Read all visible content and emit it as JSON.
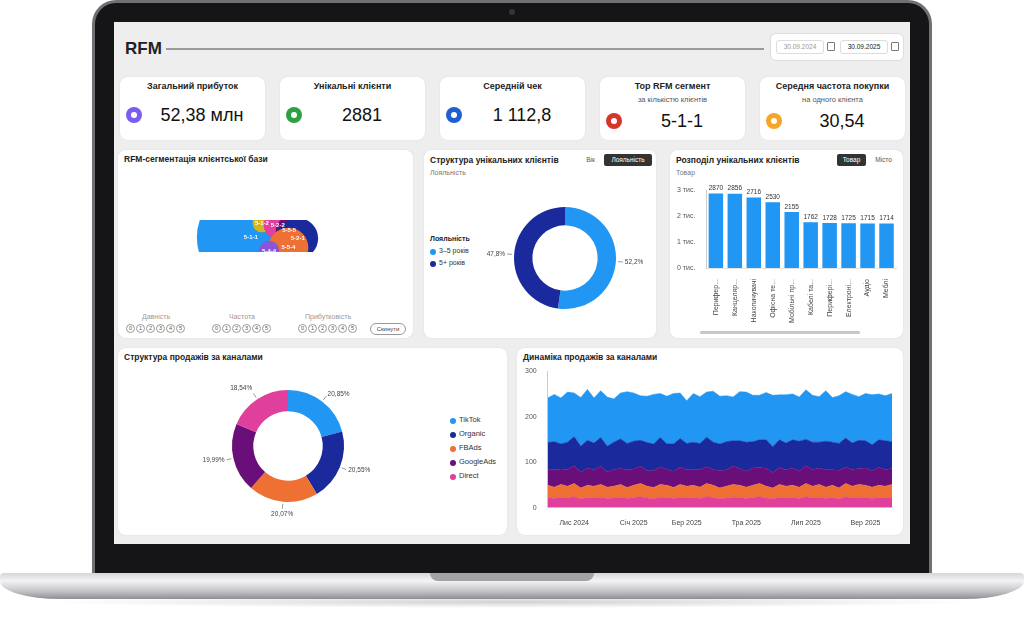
{
  "header": {
    "title": "RFM",
    "date_from": "30.09.2024",
    "date_to": "30.09.2025"
  },
  "kpis": [
    {
      "title": "Загальний прибуток",
      "value": "52,38 млн"
    },
    {
      "title": "Унікальні клієнти",
      "value": "2881"
    },
    {
      "title": "Середній чек",
      "value": "1 112,8"
    },
    {
      "title": "Top RFM сегмент",
      "subtitle": "за кількістю клієнтів",
      "value": "5-1-1"
    },
    {
      "title": "Середня частота покупки",
      "subtitle": "на одного клієнта",
      "value": "30,54"
    }
  ],
  "chart_data": [
    {
      "type": "bubble",
      "title": "RFM-сегментація клієнтської бази",
      "categories": [
        "5-1-1",
        "5-1-2",
        "5-2-2",
        "5-5-5",
        "5-2-1",
        "5-5-4",
        "5-4-4"
      ],
      "values": [
        1400,
        42,
        95,
        85,
        200,
        190,
        50
      ],
      "colors": [
        "#2196f3",
        "#d4b51a",
        "#e040a0",
        "#6a0f7a",
        "#1a2a9c",
        "#ee7033",
        "#8a55d8"
      ],
      "data_labels": true,
      "tick_labels": false,
      "filters": [
        {
          "label": "Давність",
          "options": [
            0,
            1,
            2,
            3,
            4,
            5
          ]
        },
        {
          "label": "Частота",
          "options": [
            0,
            1,
            2,
            3,
            4,
            5
          ]
        },
        {
          "label": "Прибутковість",
          "options": [
            0,
            1,
            2,
            3,
            4,
            5
          ]
        }
      ],
      "reset": "Скинути"
    },
    {
      "type": "doughnut",
      "title": "Структура унікальних клієнтів",
      "toggles": [
        "Вік",
        "Лояльність"
      ],
      "active_toggle": "Лояльність",
      "subtitle": "Лояльність",
      "legend_title": "Лояльність",
      "legend": "left",
      "categories": [
        "3–5 років",
        "5+ років"
      ],
      "values": [
        52.2,
        47.8
      ],
      "value_labels": [
        "52,2%",
        "47,8%"
      ],
      "colors": [
        "#2196f3",
        "#1a2a9c"
      ],
      "data_labels": true
    },
    {
      "type": "bar",
      "title": "Розподіл унікальних клієнтів",
      "toggles": [
        "Товар",
        "Місто"
      ],
      "active_toggle": "Товар",
      "subtitle": "Товар",
      "categories": [
        "Перифер...",
        "Канцеляр...",
        "Накопичувачі",
        "Офісна те...",
        "Мобільні пр...",
        "Кабелі та...",
        "Перифері...",
        "Електроні...",
        "Аудіо",
        "Меблі"
      ],
      "values": [
        2870,
        2856,
        2716,
        2530,
        2155,
        1762,
        1728,
        1725,
        1715,
        1714
      ],
      "color": "#2196f3",
      "ylim": [
        0,
        3000
      ],
      "yticks": [
        {
          "value": 0,
          "label": "0 тис."
        },
        {
          "value": 1000,
          "label": "1 тис."
        },
        {
          "value": 2000,
          "label": "2 тис."
        },
        {
          "value": 3000,
          "label": "3 тис."
        }
      ],
      "data_labels": true,
      "grid": false
    },
    {
      "type": "doughnut",
      "title": "Структура продажів за каналами",
      "legend": "right",
      "categories": [
        "TikTok",
        "Organic",
        "FBAds",
        "GoogleAds",
        "Direct"
      ],
      "values": [
        20.85,
        20.55,
        20.07,
        19.99,
        18.54
      ],
      "value_labels": [
        "20,85%",
        "20,55%",
        "20,07%",
        "19,99%",
        "18,54%"
      ],
      "colors": [
        "#2196f3",
        "#1a2a9c",
        "#ee7033",
        "#6a0f7a",
        "#e0409c"
      ],
      "data_labels": true
    },
    {
      "type": "area",
      "title": "Динаміка продажів за каналами",
      "stacked": true,
      "grid": false,
      "categories": [
        null,
        null,
        null,
        null,
        "Лис 2024",
        null,
        null,
        null,
        null,
        null,
        null,
        null,
        null,
        "Січ 2025",
        null,
        null,
        null,
        null,
        null,
        null,
        null,
        "Бер 2025",
        null,
        null,
        null,
        null,
        null,
        null,
        null,
        null,
        "Тра 2025",
        null,
        null,
        null,
        null,
        null,
        null,
        null,
        null,
        "Лип 2025",
        null,
        null,
        null,
        null,
        null,
        null,
        null,
        null,
        "Вер 2025",
        null,
        null,
        null,
        null
      ],
      "ylim": [
        0,
        300
      ],
      "yticks": [
        0,
        100,
        200,
        300
      ],
      "series": [
        {
          "color": "#e0409c",
          "values": [
            22,
            20,
            23,
            21,
            24,
            19,
            22,
            21,
            23,
            20,
            21,
            23,
            20,
            22,
            24,
            21,
            19,
            23,
            22,
            20,
            23,
            21,
            22,
            20,
            24,
            22,
            19,
            21,
            23,
            22,
            20,
            22,
            24,
            21,
            19,
            23,
            21,
            22,
            20,
            24,
            21,
            23,
            20,
            22,
            19,
            24,
            21,
            23,
            22,
            20,
            22,
            21,
            23
          ]
        },
        {
          "color": "#ee7033",
          "values": [
            27,
            25,
            28,
            26,
            29,
            24,
            27,
            26,
            28,
            25,
            26,
            28,
            24,
            27,
            29,
            26,
            25,
            28,
            27,
            24,
            28,
            26,
            27,
            25,
            29,
            27,
            24,
            26,
            28,
            27,
            25,
            27,
            29,
            26,
            24,
            28,
            26,
            27,
            25,
            29,
            26,
            28,
            25,
            27,
            24,
            29,
            26,
            28,
            27,
            25,
            27,
            26,
            28
          ]
        },
        {
          "color": "#6a0f7a",
          "values": [
            36,
            38,
            34,
            37,
            39,
            35,
            38,
            36,
            40,
            34,
            37,
            35,
            39,
            36,
            38,
            34,
            37,
            39,
            35,
            36,
            38,
            36,
            34,
            39,
            37,
            35,
            38,
            36,
            40,
            37,
            35,
            38,
            36,
            39,
            34,
            37,
            36,
            38,
            35,
            39,
            37,
            36,
            38,
            34,
            39,
            36,
            37,
            35,
            38,
            36,
            39,
            37,
            35
          ]
        },
        {
          "color": "#1a2a9c",
          "values": [
            58,
            62,
            55,
            60,
            64,
            57,
            61,
            59,
            63,
            56,
            60,
            65,
            58,
            61,
            57,
            62,
            59,
            64,
            56,
            60,
            63,
            58,
            61,
            57,
            65,
            60,
            59,
            62,
            56,
            61,
            64,
            58,
            60,
            63,
            57,
            61,
            59,
            62,
            66,
            58,
            60,
            57,
            63,
            61,
            59,
            64,
            58,
            62,
            60,
            57,
            61,
            63,
            59
          ]
        },
        {
          "color": "#2196f3",
          "values": [
            98,
            104,
            101,
            110,
            96,
            107,
            112,
            99,
            103,
            108,
            95,
            101,
            114,
            106,
            98,
            102,
            109,
            97,
            105,
            111,
            100,
            94,
            107,
            103,
            99,
            112,
            105,
            101,
            96,
            108,
            110,
            102,
            98,
            104,
            113,
            99,
            106,
            101,
            97,
            109,
            103,
            100,
            111,
            98,
            105,
            102,
            107,
            96,
            104,
            110,
            101,
            99,
            106
          ]
        }
      ]
    }
  ]
}
